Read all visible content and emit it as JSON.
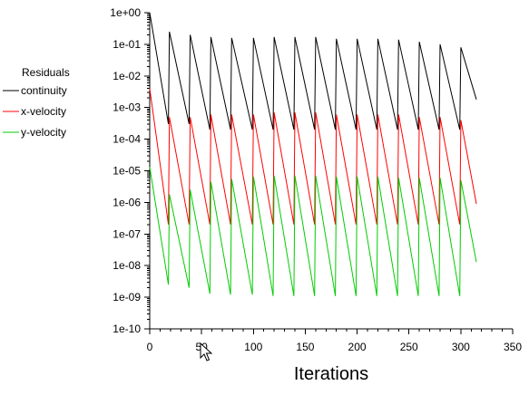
{
  "chart_data": {
    "type": "line",
    "xlabel": "Iterations",
    "ylabel": "",
    "xscale": "linear",
    "yscale": "log",
    "xlim": [
      0,
      350
    ],
    "ylim": [
      1e-10,
      1
    ],
    "xticks": [
      0,
      50,
      100,
      150,
      200,
      250,
      300,
      350
    ],
    "xtick_labels": [
      "0",
      "50",
      "100",
      "150",
      "200",
      "250",
      "300",
      "350"
    ],
    "yticks": [
      1,
      0.1,
      0.01,
      0.001,
      0.0001,
      1e-05,
      1e-06,
      1e-07,
      1e-08,
      1e-09,
      1e-10
    ],
    "ytick_labels": [
      "1e+00",
      "1e-01",
      "1e-02",
      "1e-03",
      "1e-04",
      "1e-05",
      "1e-06",
      "1e-07",
      "1e-08",
      "1e-09",
      "1e-10"
    ],
    "grid": false,
    "legend": {
      "title": "Residuals",
      "placement": "left"
    },
    "series": [
      {
        "name": "continuity",
        "color": "#000000",
        "start": [
          0,
          1.0
        ],
        "cycle_starts": [
          19,
          39,
          59,
          79,
          100,
          120,
          140,
          160,
          180,
          200,
          220,
          240,
          260,
          280,
          300
        ],
        "peaks": [
          0.25,
          0.2,
          0.17,
          0.16,
          0.16,
          0.17,
          0.17,
          0.17,
          0.15,
          0.15,
          0.15,
          0.14,
          0.12,
          0.1,
          0.08
        ],
        "troughs": [
          0.0003,
          0.0003,
          0.0002,
          0.0002,
          0.0002,
          0.0002,
          0.0002,
          0.0002,
          0.0002,
          0.0002,
          0.0002,
          0.0002,
          0.0002,
          0.0002,
          0.0002
        ],
        "end": [
          315,
          0.0018
        ]
      },
      {
        "name": "x-velocity",
        "color": "#ff0000",
        "start": [
          0,
          0.004
        ],
        "cycle_starts": [
          19,
          39,
          59,
          79,
          100,
          120,
          140,
          160,
          180,
          200,
          220,
          240,
          260,
          280,
          300
        ],
        "peaks": [
          0.0005,
          0.0005,
          0.0006,
          0.0006,
          0.0006,
          0.0007,
          0.0007,
          0.0007,
          0.0006,
          0.0006,
          0.0006,
          0.0006,
          0.0005,
          0.0005,
          0.0004
        ],
        "troughs": [
          2e-07,
          2e-07,
          2e-07,
          2e-07,
          2e-07,
          2e-07,
          2e-07,
          2e-07,
          2e-07,
          2e-07,
          2e-07,
          2e-07,
          2e-07,
          2e-07,
          2e-07
        ],
        "end": [
          315,
          9e-07
        ]
      },
      {
        "name": "y-velocity",
        "color": "#00cc00",
        "start": [
          0,
          1.3e-05
        ],
        "cycle_starts": [
          19,
          39,
          59,
          79,
          100,
          120,
          140,
          160,
          180,
          200,
          220,
          240,
          260,
          280,
          300
        ],
        "peaks": [
          1.8e-06,
          2.5e-06,
          4.5e-06,
          5.5e-06,
          6.5e-06,
          7e-06,
          7e-06,
          7e-06,
          6.5e-06,
          6.5e-06,
          6.5e-06,
          6e-06,
          6e-06,
          6e-06,
          5e-06
        ],
        "troughs": [
          2.5e-09,
          2e-09,
          1.3e-09,
          1.2e-09,
          1.2e-09,
          1.1e-09,
          1.1e-09,
          1.1e-09,
          1.1e-09,
          1.1e-09,
          1.1e-09,
          1.1e-09,
          1.1e-09,
          1.1e-09,
          1.1e-09
        ],
        "end": [
          315,
          1.3e-08
        ]
      }
    ]
  }
}
